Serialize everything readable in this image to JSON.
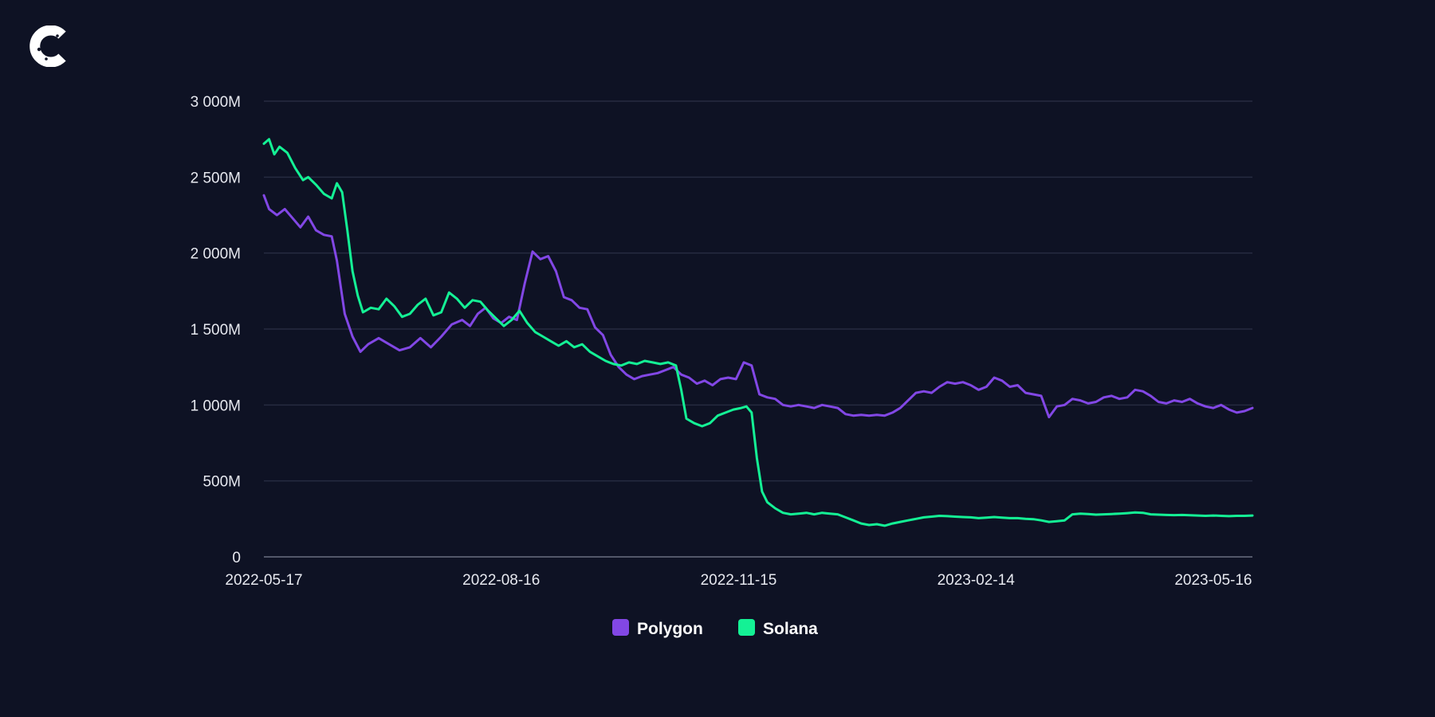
{
  "colors": {
    "background": "#0e1224",
    "polygon": "#8247e5",
    "solana": "#14f195",
    "grid": "#262b40"
  },
  "logo": {
    "icon": "c-logo-icon"
  },
  "chart_data": {
    "type": "line",
    "title": "",
    "xlabel": "",
    "ylabel": "",
    "ylim": [
      0,
      3000
    ],
    "y_ticks": [
      {
        "value": 0,
        "label": "0"
      },
      {
        "value": 500,
        "label": "500M"
      },
      {
        "value": 1000,
        "label": "1 000M"
      },
      {
        "value": 1500,
        "label": "1 500M"
      },
      {
        "value": 2000,
        "label": "2 000M"
      },
      {
        "value": 2500,
        "label": "2 500M"
      },
      {
        "value": 3000,
        "label": "3 000M"
      }
    ],
    "x_range": [
      "2022-05-17",
      "2023-05-31"
    ],
    "x_ticks": [
      "2022-05-17",
      "2022-08-16",
      "2022-11-15",
      "2023-02-14",
      "2023-05-16"
    ],
    "grid": true,
    "legend_placement": "bottom-center",
    "series": [
      {
        "name": "Polygon",
        "color": "#8247e5",
        "points": [
          [
            "2022-05-17",
            2380
          ],
          [
            "2022-05-19",
            2290
          ],
          [
            "2022-05-22",
            2250
          ],
          [
            "2022-05-25",
            2290
          ],
          [
            "2022-05-28",
            2230
          ],
          [
            "2022-05-31",
            2170
          ],
          [
            "2022-06-03",
            2240
          ],
          [
            "2022-06-06",
            2150
          ],
          [
            "2022-06-09",
            2120
          ],
          [
            "2022-06-12",
            2110
          ],
          [
            "2022-06-14",
            1950
          ],
          [
            "2022-06-17",
            1600
          ],
          [
            "2022-06-20",
            1450
          ],
          [
            "2022-06-23",
            1350
          ],
          [
            "2022-06-26",
            1400
          ],
          [
            "2022-06-30",
            1440
          ],
          [
            "2022-07-04",
            1400
          ],
          [
            "2022-07-08",
            1360
          ],
          [
            "2022-07-12",
            1380
          ],
          [
            "2022-07-16",
            1440
          ],
          [
            "2022-07-20",
            1380
          ],
          [
            "2022-07-24",
            1450
          ],
          [
            "2022-07-28",
            1530
          ],
          [
            "2022-08-01",
            1560
          ],
          [
            "2022-08-04",
            1520
          ],
          [
            "2022-08-07",
            1600
          ],
          [
            "2022-08-10",
            1640
          ],
          [
            "2022-08-13",
            1570
          ],
          [
            "2022-08-16",
            1540
          ],
          [
            "2022-08-19",
            1580
          ],
          [
            "2022-08-22",
            1560
          ],
          [
            "2022-08-25",
            1800
          ],
          [
            "2022-08-28",
            2010
          ],
          [
            "2022-08-31",
            1960
          ],
          [
            "2022-09-03",
            1980
          ],
          [
            "2022-09-06",
            1880
          ],
          [
            "2022-09-09",
            1710
          ],
          [
            "2022-09-12",
            1690
          ],
          [
            "2022-09-15",
            1640
          ],
          [
            "2022-09-18",
            1630
          ],
          [
            "2022-09-21",
            1510
          ],
          [
            "2022-09-24",
            1460
          ],
          [
            "2022-09-27",
            1330
          ],
          [
            "2022-09-30",
            1250
          ],
          [
            "2022-10-03",
            1200
          ],
          [
            "2022-10-06",
            1170
          ],
          [
            "2022-10-09",
            1190
          ],
          [
            "2022-10-12",
            1200
          ],
          [
            "2022-10-15",
            1210
          ],
          [
            "2022-10-18",
            1230
          ],
          [
            "2022-10-21",
            1250
          ],
          [
            "2022-10-24",
            1200
          ],
          [
            "2022-10-27",
            1180
          ],
          [
            "2022-10-30",
            1140
          ],
          [
            "2022-11-02",
            1160
          ],
          [
            "2022-11-05",
            1130
          ],
          [
            "2022-11-08",
            1170
          ],
          [
            "2022-11-11",
            1180
          ],
          [
            "2022-11-14",
            1170
          ],
          [
            "2022-11-17",
            1280
          ],
          [
            "2022-11-20",
            1260
          ],
          [
            "2022-11-23",
            1070
          ],
          [
            "2022-11-26",
            1050
          ],
          [
            "2022-11-29",
            1040
          ],
          [
            "2022-12-02",
            1000
          ],
          [
            "2022-12-05",
            990
          ],
          [
            "2022-12-08",
            1000
          ],
          [
            "2022-12-11",
            990
          ],
          [
            "2022-12-14",
            980
          ],
          [
            "2022-12-17",
            1000
          ],
          [
            "2022-12-20",
            990
          ],
          [
            "2022-12-23",
            980
          ],
          [
            "2022-12-26",
            940
          ],
          [
            "2022-12-29",
            930
          ],
          [
            "2023-01-01",
            935
          ],
          [
            "2023-01-04",
            930
          ],
          [
            "2023-01-07",
            935
          ],
          [
            "2023-01-10",
            930
          ],
          [
            "2023-01-13",
            950
          ],
          [
            "2023-01-16",
            980
          ],
          [
            "2023-01-19",
            1030
          ],
          [
            "2023-01-22",
            1080
          ],
          [
            "2023-01-25",
            1090
          ],
          [
            "2023-01-28",
            1080
          ],
          [
            "2023-01-31",
            1120
          ],
          [
            "2023-02-03",
            1150
          ],
          [
            "2023-02-06",
            1140
          ],
          [
            "2023-02-09",
            1150
          ],
          [
            "2023-02-12",
            1130
          ],
          [
            "2023-02-15",
            1100
          ],
          [
            "2023-02-18",
            1120
          ],
          [
            "2023-02-21",
            1180
          ],
          [
            "2023-02-24",
            1160
          ],
          [
            "2023-02-27",
            1120
          ],
          [
            "2023-03-02",
            1130
          ],
          [
            "2023-03-05",
            1080
          ],
          [
            "2023-03-08",
            1070
          ],
          [
            "2023-03-11",
            1060
          ],
          [
            "2023-03-14",
            920
          ],
          [
            "2023-03-17",
            990
          ],
          [
            "2023-03-20",
            1000
          ],
          [
            "2023-03-23",
            1040
          ],
          [
            "2023-03-26",
            1030
          ],
          [
            "2023-03-29",
            1010
          ],
          [
            "2023-04-01",
            1020
          ],
          [
            "2023-04-04",
            1050
          ],
          [
            "2023-04-07",
            1060
          ],
          [
            "2023-04-10",
            1040
          ],
          [
            "2023-04-13",
            1050
          ],
          [
            "2023-04-16",
            1100
          ],
          [
            "2023-04-19",
            1090
          ],
          [
            "2023-04-22",
            1060
          ],
          [
            "2023-04-25",
            1020
          ],
          [
            "2023-04-28",
            1010
          ],
          [
            "2023-05-01",
            1030
          ],
          [
            "2023-05-04",
            1020
          ],
          [
            "2023-05-07",
            1040
          ],
          [
            "2023-05-10",
            1010
          ],
          [
            "2023-05-13",
            990
          ],
          [
            "2023-05-16",
            980
          ],
          [
            "2023-05-19",
            1000
          ],
          [
            "2023-05-22",
            970
          ],
          [
            "2023-05-25",
            950
          ],
          [
            "2023-05-28",
            960
          ],
          [
            "2023-05-31",
            980
          ]
        ]
      },
      {
        "name": "Solana",
        "color": "#14f195",
        "points": [
          [
            "2022-05-17",
            2720
          ],
          [
            "2022-05-19",
            2750
          ],
          [
            "2022-05-21",
            2650
          ],
          [
            "2022-05-23",
            2700
          ],
          [
            "2022-05-26",
            2660
          ],
          [
            "2022-05-29",
            2560
          ],
          [
            "2022-06-01",
            2480
          ],
          [
            "2022-06-03",
            2500
          ],
          [
            "2022-06-06",
            2450
          ],
          [
            "2022-06-09",
            2390
          ],
          [
            "2022-06-12",
            2360
          ],
          [
            "2022-06-14",
            2460
          ],
          [
            "2022-06-16",
            2400
          ],
          [
            "2022-06-18",
            2150
          ],
          [
            "2022-06-20",
            1880
          ],
          [
            "2022-06-22",
            1720
          ],
          [
            "2022-06-24",
            1610
          ],
          [
            "2022-06-27",
            1640
          ],
          [
            "2022-06-30",
            1630
          ],
          [
            "2022-07-03",
            1700
          ],
          [
            "2022-07-06",
            1650
          ],
          [
            "2022-07-09",
            1580
          ],
          [
            "2022-07-12",
            1600
          ],
          [
            "2022-07-15",
            1660
          ],
          [
            "2022-07-18",
            1700
          ],
          [
            "2022-07-21",
            1590
          ],
          [
            "2022-07-24",
            1610
          ],
          [
            "2022-07-27",
            1740
          ],
          [
            "2022-07-30",
            1700
          ],
          [
            "2022-08-02",
            1640
          ],
          [
            "2022-08-05",
            1690
          ],
          [
            "2022-08-08",
            1680
          ],
          [
            "2022-08-11",
            1620
          ],
          [
            "2022-08-14",
            1570
          ],
          [
            "2022-08-17",
            1520
          ],
          [
            "2022-08-20",
            1560
          ],
          [
            "2022-08-23",
            1620
          ],
          [
            "2022-08-26",
            1540
          ],
          [
            "2022-08-29",
            1480
          ],
          [
            "2022-09-01",
            1450
          ],
          [
            "2022-09-04",
            1420
          ],
          [
            "2022-09-07",
            1390
          ],
          [
            "2022-09-10",
            1420
          ],
          [
            "2022-09-13",
            1380
          ],
          [
            "2022-09-16",
            1400
          ],
          [
            "2022-09-19",
            1350
          ],
          [
            "2022-09-22",
            1320
          ],
          [
            "2022-09-25",
            1290
          ],
          [
            "2022-09-28",
            1270
          ],
          [
            "2022-10-01",
            1260
          ],
          [
            "2022-10-04",
            1280
          ],
          [
            "2022-10-07",
            1270
          ],
          [
            "2022-10-10",
            1290
          ],
          [
            "2022-10-13",
            1280
          ],
          [
            "2022-10-16",
            1270
          ],
          [
            "2022-10-19",
            1280
          ],
          [
            "2022-10-22",
            1260
          ],
          [
            "2022-10-24",
            1100
          ],
          [
            "2022-10-26",
            910
          ],
          [
            "2022-10-29",
            880
          ],
          [
            "2022-11-01",
            860
          ],
          [
            "2022-11-04",
            880
          ],
          [
            "2022-11-07",
            930
          ],
          [
            "2022-11-10",
            950
          ],
          [
            "2022-11-13",
            970
          ],
          [
            "2022-11-16",
            980
          ],
          [
            "2022-11-18",
            990
          ],
          [
            "2022-11-20",
            950
          ],
          [
            "2022-11-22",
            650
          ],
          [
            "2022-11-24",
            430
          ],
          [
            "2022-11-26",
            360
          ],
          [
            "2022-11-29",
            320
          ],
          [
            "2022-12-02",
            290
          ],
          [
            "2022-12-05",
            280
          ],
          [
            "2022-12-08",
            285
          ],
          [
            "2022-12-11",
            290
          ],
          [
            "2022-12-14",
            280
          ],
          [
            "2022-12-17",
            290
          ],
          [
            "2022-12-20",
            285
          ],
          [
            "2022-12-23",
            280
          ],
          [
            "2022-12-26",
            260
          ],
          [
            "2022-12-29",
            240
          ],
          [
            "2023-01-01",
            220
          ],
          [
            "2023-01-04",
            210
          ],
          [
            "2023-01-07",
            215
          ],
          [
            "2023-01-10",
            205
          ],
          [
            "2023-01-13",
            220
          ],
          [
            "2023-01-16",
            230
          ],
          [
            "2023-01-19",
            240
          ],
          [
            "2023-01-22",
            250
          ],
          [
            "2023-01-25",
            260
          ],
          [
            "2023-01-28",
            265
          ],
          [
            "2023-01-31",
            270
          ],
          [
            "2023-02-03",
            268
          ],
          [
            "2023-02-06",
            265
          ],
          [
            "2023-02-09",
            262
          ],
          [
            "2023-02-12",
            260
          ],
          [
            "2023-02-15",
            255
          ],
          [
            "2023-02-18",
            258
          ],
          [
            "2023-02-21",
            262
          ],
          [
            "2023-02-24",
            258
          ],
          [
            "2023-02-27",
            255
          ],
          [
            "2023-03-02",
            255
          ],
          [
            "2023-03-05",
            250
          ],
          [
            "2023-03-08",
            248
          ],
          [
            "2023-03-11",
            240
          ],
          [
            "2023-03-14",
            230
          ],
          [
            "2023-03-17",
            235
          ],
          [
            "2023-03-20",
            240
          ],
          [
            "2023-03-23",
            280
          ],
          [
            "2023-03-26",
            285
          ],
          [
            "2023-03-29",
            282
          ],
          [
            "2023-04-01",
            278
          ],
          [
            "2023-04-04",
            280
          ],
          [
            "2023-04-07",
            282
          ],
          [
            "2023-04-10",
            285
          ],
          [
            "2023-04-13",
            288
          ],
          [
            "2023-04-16",
            292
          ],
          [
            "2023-04-19",
            290
          ],
          [
            "2023-04-22",
            280
          ],
          [
            "2023-04-25",
            278
          ],
          [
            "2023-04-28",
            276
          ],
          [
            "2023-05-01",
            275
          ],
          [
            "2023-05-04",
            276
          ],
          [
            "2023-05-07",
            274
          ],
          [
            "2023-05-10",
            272
          ],
          [
            "2023-05-13",
            270
          ],
          [
            "2023-05-16",
            272
          ],
          [
            "2023-05-19",
            270
          ],
          [
            "2023-05-22",
            268
          ],
          [
            "2023-05-25",
            270
          ],
          [
            "2023-05-28",
            270
          ],
          [
            "2023-05-31",
            272
          ]
        ]
      }
    ]
  }
}
